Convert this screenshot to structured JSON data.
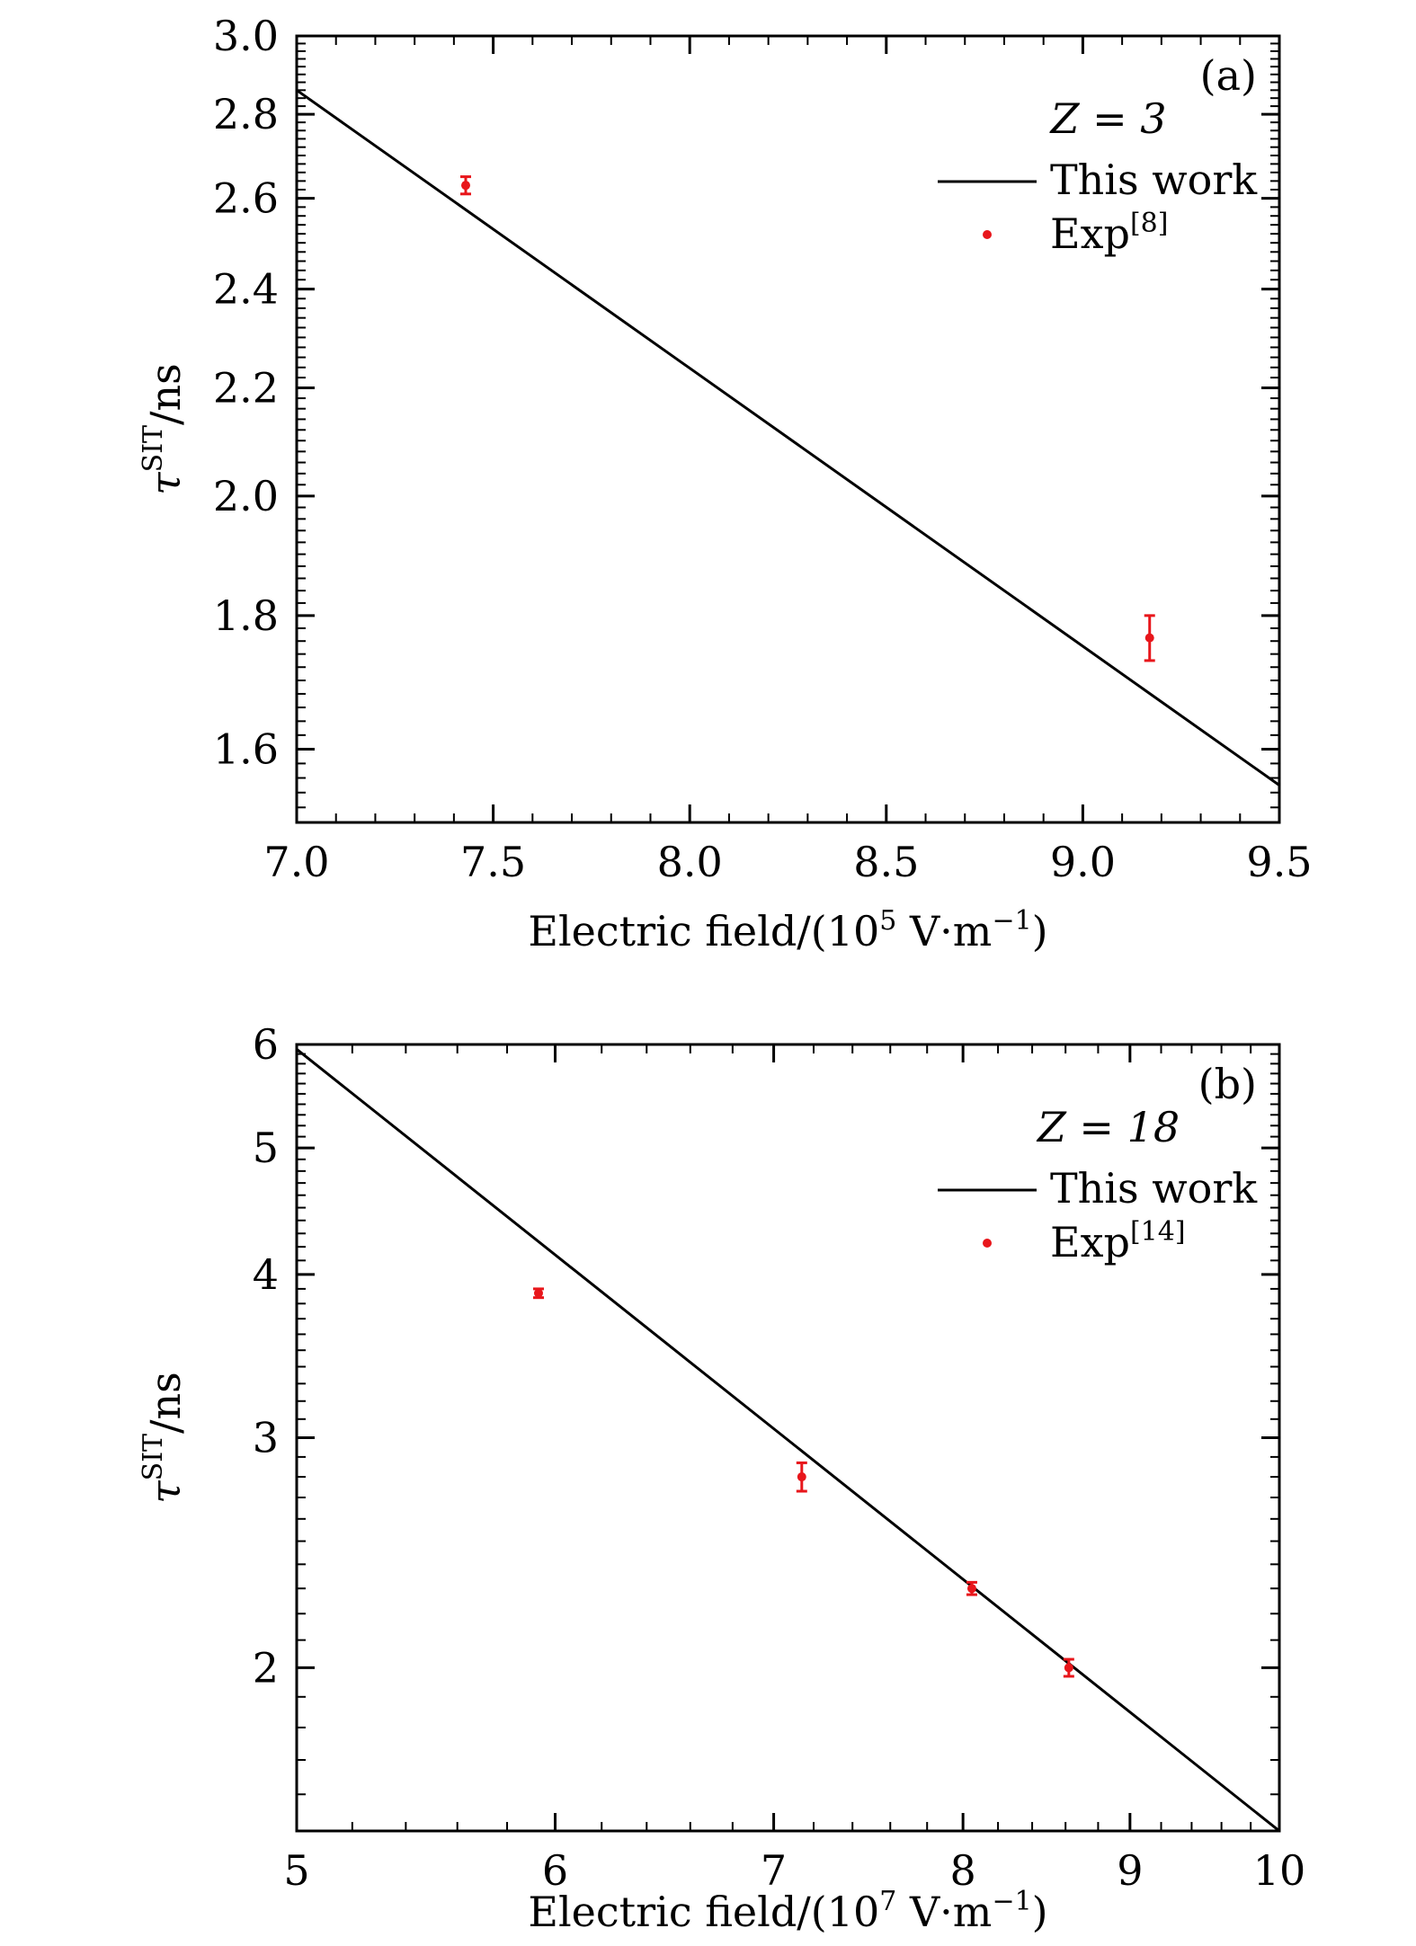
{
  "chart_data": [
    {
      "type": "line",
      "panel_label": "(a)",
      "legend_title": "Z = 3",
      "xlabel": {
        "prefix": "Electric field/(10",
        "exp": "5",
        "unit": " V·m",
        "unit_exp": "−1",
        "suffix": ")"
      },
      "ylabel": {
        "base": "τ",
        "sup": "SIT",
        "suffix": "/ns"
      },
      "xlim": [
        7.0,
        9.5
      ],
      "ylim": [
        1.5,
        3.0
      ],
      "yscale": "log",
      "xticks": [
        "7.0",
        "7.5",
        "8.0",
        "8.5",
        "9.0",
        "9.5"
      ],
      "xtick_values": [
        7.0,
        7.5,
        8.0,
        8.5,
        9.0,
        9.5
      ],
      "yticks": [
        "1.6",
        "1.8",
        "2.0",
        "2.2",
        "2.4",
        "2.6",
        "2.8",
        "3.0"
      ],
      "ytick_values": [
        1.6,
        1.8,
        2.0,
        2.2,
        2.4,
        2.6,
        2.8,
        3.0
      ],
      "grid": false,
      "legend_position": "top-right",
      "series": [
        {
          "name": "This work",
          "kind": "line",
          "color": "#000000",
          "x": [
            7.0,
            9.5
          ],
          "y": [
            2.86,
            1.55
          ]
        },
        {
          "name": "Exp",
          "name_sup": "[8]",
          "kind": "errorbar",
          "color": "#e8161b",
          "x": [
            7.43,
            9.17
          ],
          "y": [
            2.63,
            1.765
          ],
          "err": [
            0.02,
            0.035
          ]
        }
      ]
    },
    {
      "type": "line",
      "panel_label": "(b)",
      "legend_title": "Z = 18",
      "xlabel": {
        "prefix": "Electric field/(10",
        "exp": "7",
        "unit": " V·m",
        "unit_exp": "−1",
        "suffix": ")"
      },
      "ylabel": {
        "base": "τ",
        "sup": "SIT",
        "suffix": "/ns"
      },
      "xlim": [
        5,
        10
      ],
      "ylim": [
        1.5,
        6.0
      ],
      "xscale": "log",
      "yscale": "log",
      "xticks": [
        "5",
        "6",
        "7",
        "8",
        "9",
        "10"
      ],
      "xtick_values": [
        5,
        6,
        7,
        8,
        9,
        10
      ],
      "yticks": [
        "2",
        "3",
        "4",
        "5",
        "6"
      ],
      "ytick_values": [
        2,
        3,
        4,
        5,
        6
      ],
      "grid": false,
      "legend_position": "top-right",
      "series": [
        {
          "name": "This work",
          "kind": "line",
          "color": "#000000",
          "x": [
            5,
            10
          ],
          "y": [
            5.95,
            1.5
          ]
        },
        {
          "name": "Exp",
          "name_sup": "[14]",
          "kind": "errorbar",
          "color": "#e8161b",
          "x": [
            5.93,
            7.14,
            8.05,
            8.62
          ],
          "y": [
            3.87,
            2.8,
            2.3,
            2.0
          ],
          "err": [
            0.03,
            0.07,
            0.025,
            0.03
          ]
        }
      ]
    }
  ]
}
